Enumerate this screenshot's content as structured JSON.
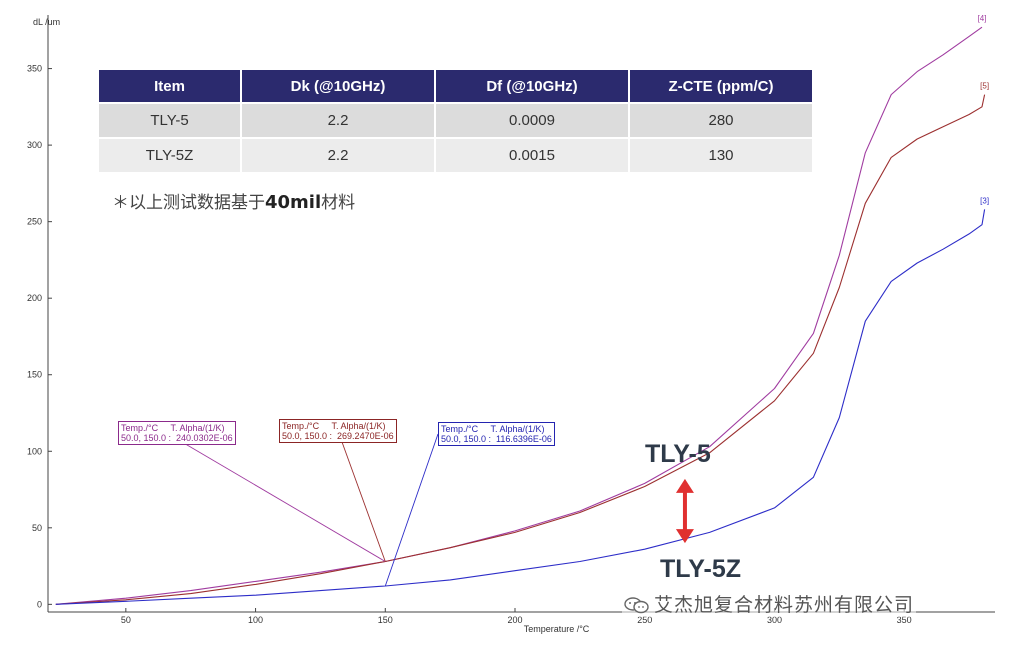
{
  "table": {
    "headers": [
      "Item",
      "Dk (@10GHz)",
      "Df (@10GHz)",
      "Z-CTE (ppm/C)"
    ],
    "rows": [
      [
        "TLY-5",
        "2.2",
        "0.0009",
        "280"
      ],
      [
        "TLY-5Z",
        "2.2",
        "0.0015",
        "130"
      ]
    ]
  },
  "note": {
    "prefix": "＊以上测试数据基于",
    "bold": "40mil",
    "suffix": "材料"
  },
  "annotations": {
    "tly5": "TLY-5",
    "tly5z": "TLY-5Z",
    "arrow_color": "#e03030"
  },
  "tooltips": [
    {
      "header": "Temp./°C     T. Alpha/(1/K)",
      "value": "50.0, 150.0 :  240.0302E-06",
      "color": "#8b2a8b"
    },
    {
      "header": "Temp./°C     T. Alpha/(1/K)",
      "value": "50.0, 150.0 :  269.2470E-06",
      "color": "#8b2525"
    },
    {
      "header": "Temp./°C     T. Alpha/(1/K)",
      "value": "50.0, 150.0 :  116.6396E-06",
      "color": "#2424b0"
    }
  ],
  "watermark": {
    "text": "艾杰旭复合材料苏州有限公司",
    "icon": "wechat-icon"
  },
  "chart_data": {
    "type": "line",
    "xlabel": "Temperature /°C",
    "ylabel": "dL /um",
    "xlim": [
      20,
      385
    ],
    "ylim": [
      -5,
      385
    ],
    "xticks": [
      50,
      100,
      150,
      200,
      250,
      300,
      350
    ],
    "yticks": [
      0,
      50,
      100,
      150,
      200,
      250,
      300,
      350
    ],
    "grid": false,
    "series": [
      {
        "name": "[4]",
        "color": "#a03ca0",
        "x": [
          23,
          50,
          75,
          100,
          125,
          150,
          175,
          200,
          225,
          250,
          275,
          300,
          315,
          325,
          335,
          345,
          355,
          365,
          375,
          380
        ],
        "y": [
          0,
          4,
          9,
          15,
          21,
          28,
          37,
          48,
          61,
          79,
          103,
          141,
          177,
          228,
          295,
          333,
          348,
          359,
          371,
          377
        ]
      },
      {
        "name": "[5]",
        "color": "#9c3030",
        "x": [
          23,
          50,
          75,
          100,
          125,
          150,
          175,
          200,
          225,
          250,
          275,
          300,
          315,
          325,
          335,
          345,
          355,
          365,
          375,
          380,
          381
        ],
        "y": [
          0,
          3,
          7,
          13,
          20,
          28,
          37,
          47,
          60,
          77,
          99,
          133,
          164,
          207,
          262,
          292,
          304,
          312,
          320,
          325,
          333
        ]
      },
      {
        "name": "[3]",
        "color": "#2d2dc8",
        "x": [
          23,
          50,
          75,
          100,
          125,
          150,
          175,
          200,
          225,
          250,
          275,
          300,
          315,
          325,
          335,
          345,
          355,
          365,
          375,
          380,
          381
        ],
        "y": [
          0,
          2,
          4,
          6,
          9,
          12,
          16,
          22,
          28,
          36,
          47,
          63,
          83,
          122,
          185,
          211,
          223,
          232,
          242,
          248,
          258
        ]
      }
    ]
  }
}
